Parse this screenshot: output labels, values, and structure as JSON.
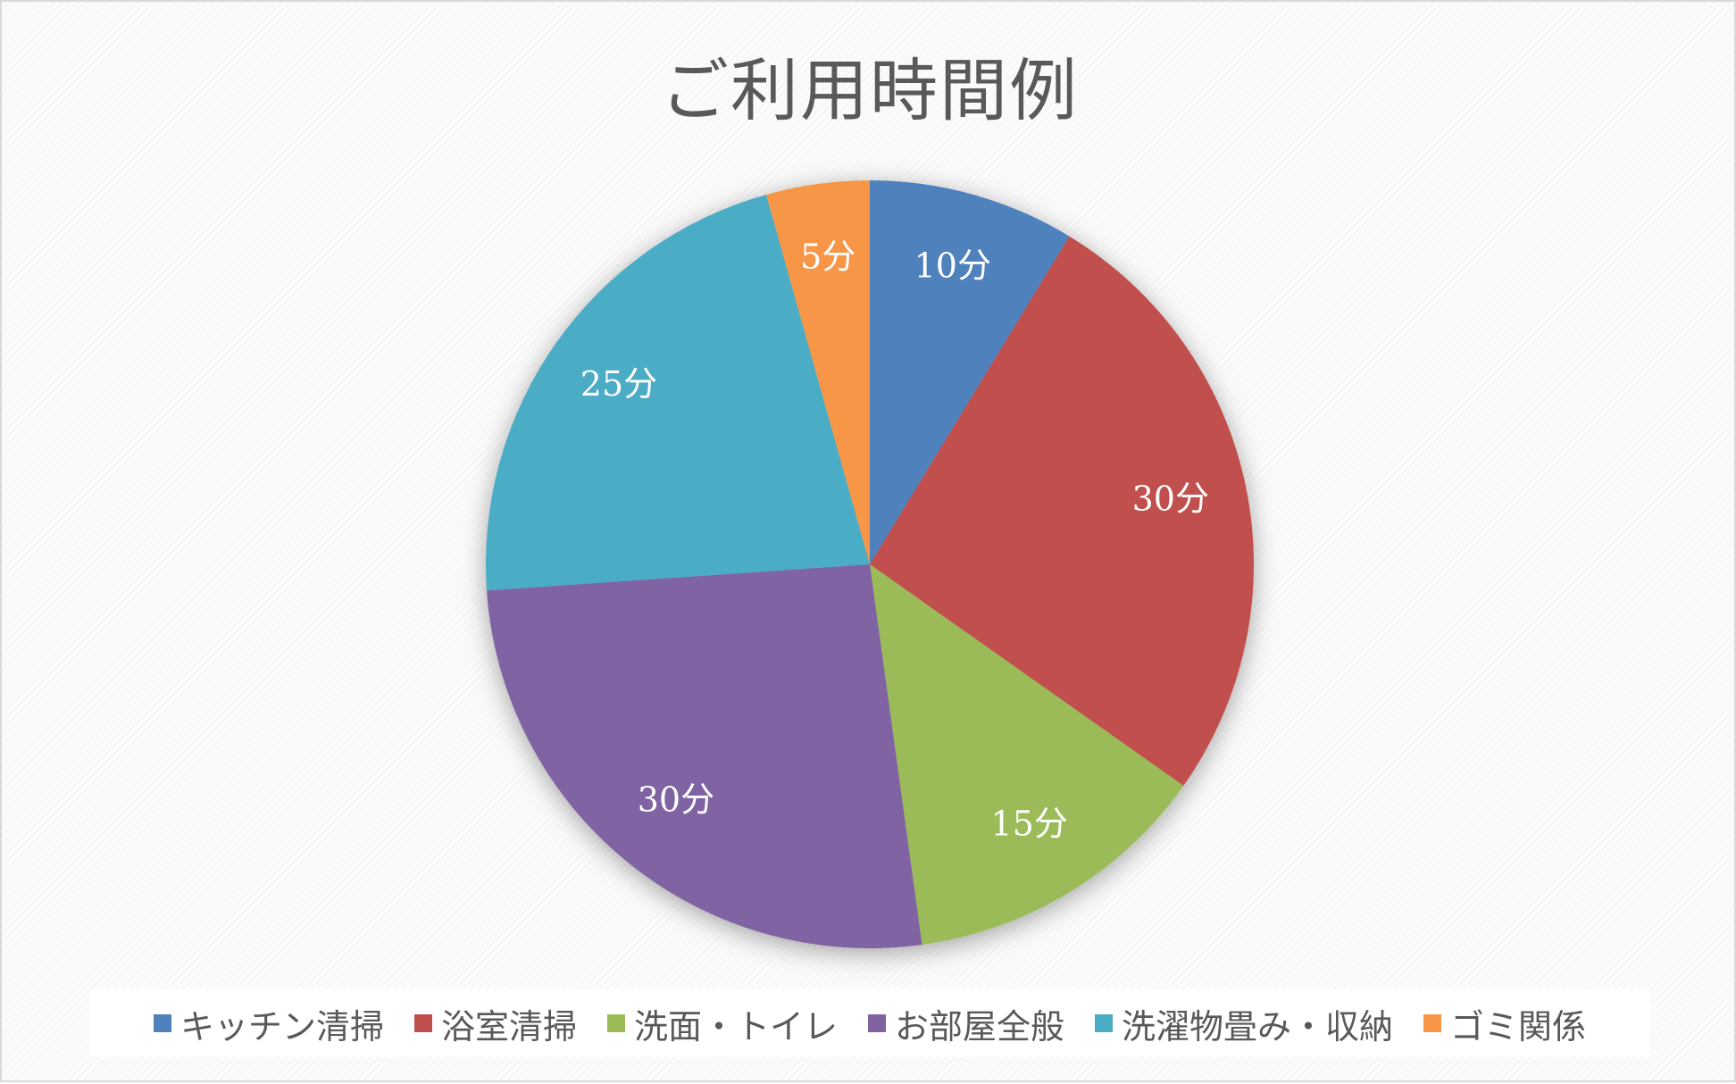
{
  "chart_data": {
    "type": "pie",
    "title": "ご利用時間例",
    "start_angle": "12 o'clock",
    "direction": "clockwise",
    "legend_position": "bottom",
    "categories": [
      "キッチン清掃",
      "浴室清掃",
      "洗面・トイレ",
      "お部屋全般",
      "洗濯物畳み・収納",
      "ゴミ関係"
    ],
    "values": [
      10,
      30,
      15,
      30,
      25,
      5
    ],
    "data_labels": [
      "10分",
      "30分",
      "15分",
      "30分",
      "25分",
      "5分"
    ],
    "colors": [
      "#4F81BD",
      "#C0504D",
      "#9BBB59",
      "#8064A2",
      "#4BACC6",
      "#F79646"
    ]
  }
}
